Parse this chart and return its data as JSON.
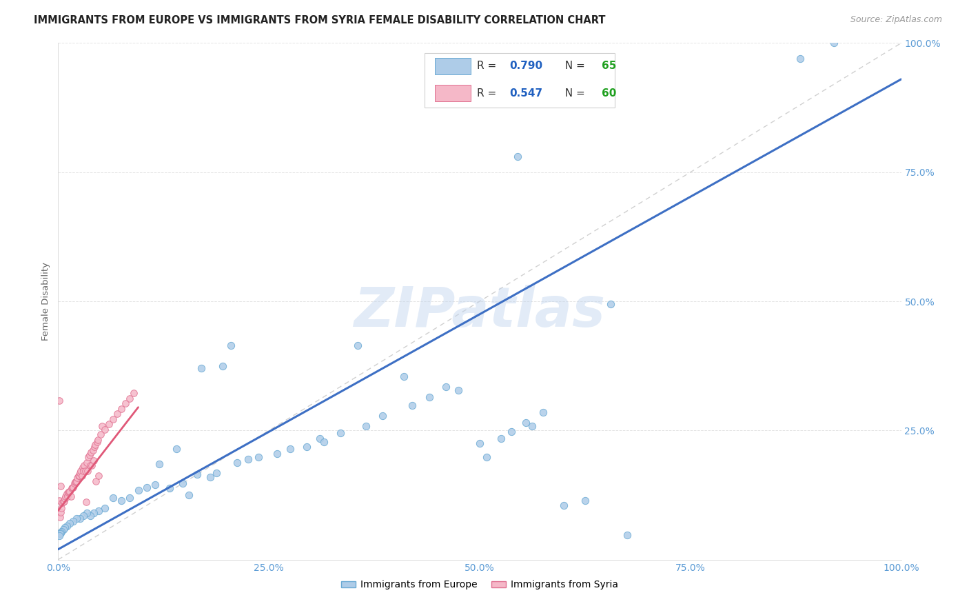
{
  "title": "IMMIGRANTS FROM EUROPE VS IMMIGRANTS FROM SYRIA FEMALE DISABILITY CORRELATION CHART",
  "source": "Source: ZipAtlas.com",
  "ylabel": "Female Disability",
  "xlim": [
    0,
    1.0
  ],
  "ylim": [
    0,
    1.0
  ],
  "europe_color": "#aecce8",
  "europe_edge_color": "#6aaad4",
  "syria_color": "#f5b8c8",
  "syria_edge_color": "#e07090",
  "europe_line_color": "#3d6fc4",
  "syria_line_color": "#e05878",
  "diagonal_color": "#c8c8c8",
  "watermark": "ZIPatlas",
  "legend_R_color": "#2060c0",
  "legend_N_color": "#20a020",
  "background_color": "#ffffff",
  "grid_color": "#e0e0e0",
  "tick_color": "#5b9bd5",
  "europe_x": [
    0.92,
    0.88,
    0.655,
    0.545,
    0.205,
    0.195,
    0.17,
    0.155,
    0.14,
    0.12,
    0.105,
    0.095,
    0.085,
    0.075,
    0.065,
    0.055,
    0.048,
    0.042,
    0.038,
    0.034,
    0.03,
    0.026,
    0.022,
    0.018,
    0.014,
    0.01,
    0.008,
    0.006,
    0.004,
    0.003,
    0.002,
    0.001,
    0.18,
    0.165,
    0.148,
    0.132,
    0.115,
    0.225,
    0.26,
    0.31,
    0.355,
    0.41,
    0.46,
    0.5,
    0.525,
    0.555,
    0.575,
    0.6,
    0.625,
    0.675,
    0.188,
    0.212,
    0.238,
    0.275,
    0.295,
    0.315,
    0.335,
    0.365,
    0.385,
    0.42,
    0.44,
    0.475,
    0.508,
    0.538,
    0.562
  ],
  "europe_y": [
    1.0,
    0.97,
    0.495,
    0.78,
    0.415,
    0.375,
    0.37,
    0.125,
    0.215,
    0.185,
    0.14,
    0.135,
    0.12,
    0.115,
    0.12,
    0.1,
    0.095,
    0.09,
    0.085,
    0.09,
    0.085,
    0.08,
    0.08,
    0.075,
    0.07,
    0.065,
    0.062,
    0.058,
    0.055,
    0.052,
    0.05,
    0.047,
    0.16,
    0.165,
    0.148,
    0.138,
    0.145,
    0.195,
    0.205,
    0.235,
    0.415,
    0.355,
    0.335,
    0.225,
    0.235,
    0.265,
    0.285,
    0.105,
    0.115,
    0.048,
    0.168,
    0.188,
    0.198,
    0.215,
    0.218,
    0.228,
    0.245,
    0.258,
    0.278,
    0.298,
    0.315,
    0.328,
    0.198,
    0.248,
    0.258
  ],
  "syria_x": [
    0.001,
    0.002,
    0.003,
    0.004,
    0.005,
    0.006,
    0.007,
    0.008,
    0.009,
    0.01,
    0.011,
    0.012,
    0.013,
    0.014,
    0.015,
    0.016,
    0.017,
    0.018,
    0.019,
    0.02,
    0.021,
    0.022,
    0.023,
    0.024,
    0.025,
    0.026,
    0.027,
    0.028,
    0.029,
    0.03,
    0.031,
    0.032,
    0.033,
    0.034,
    0.035,
    0.036,
    0.037,
    0.038,
    0.039,
    0.04,
    0.041,
    0.042,
    0.043,
    0.044,
    0.045,
    0.046,
    0.047,
    0.048,
    0.05,
    0.052,
    0.055,
    0.06,
    0.065,
    0.07,
    0.075,
    0.08,
    0.085,
    0.09,
    0.001,
    0.003
  ],
  "syria_y": [
    0.115,
    0.082,
    0.092,
    0.1,
    0.11,
    0.112,
    0.113,
    0.118,
    0.122,
    0.128,
    0.122,
    0.13,
    0.132,
    0.132,
    0.122,
    0.138,
    0.14,
    0.14,
    0.148,
    0.15,
    0.15,
    0.152,
    0.158,
    0.162,
    0.162,
    0.168,
    0.172,
    0.162,
    0.178,
    0.172,
    0.182,
    0.172,
    0.112,
    0.188,
    0.172,
    0.198,
    0.202,
    0.182,
    0.208,
    0.182,
    0.212,
    0.192,
    0.218,
    0.222,
    0.152,
    0.228,
    0.232,
    0.162,
    0.242,
    0.258,
    0.252,
    0.262,
    0.272,
    0.282,
    0.292,
    0.302,
    0.312,
    0.322,
    0.308,
    0.142
  ],
  "europe_line_x": [
    0.0,
    1.0
  ],
  "europe_line_y": [
    0.02,
    0.93
  ],
  "syria_line_x": [
    0.0,
    0.095
  ],
  "syria_line_y": [
    0.095,
    0.295
  ]
}
